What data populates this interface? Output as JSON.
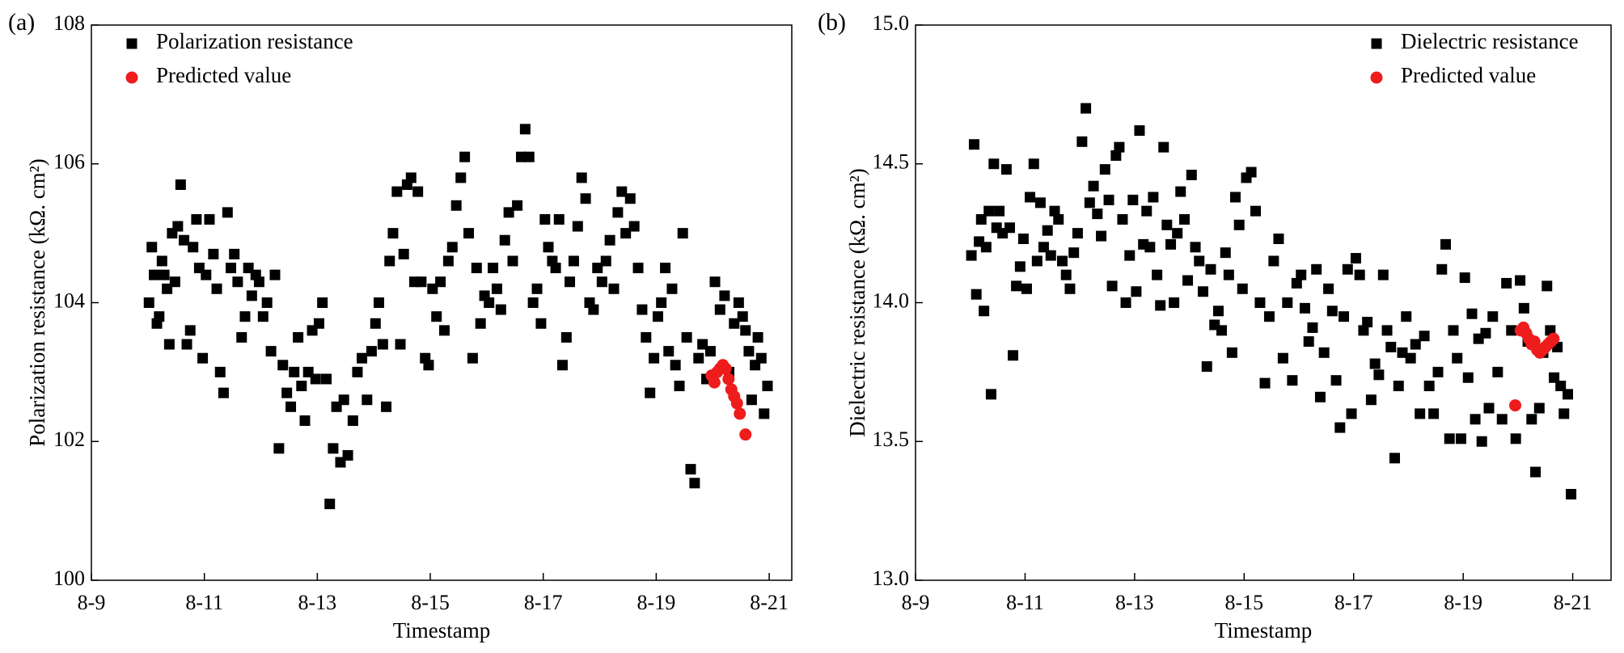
{
  "chart_data": [
    {
      "type": "scatter",
      "panel_label": "(a)",
      "xlabel": "Timestamp",
      "ylabel": "Polarization resistance (kΩ. cm²)",
      "xlim": [
        9,
        21.4
      ],
      "ylim": [
        100,
        108
      ],
      "xticks": [
        {
          "value": 9,
          "label": "8-9"
        },
        {
          "value": 11,
          "label": "8-11"
        },
        {
          "value": 13,
          "label": "8-13"
        },
        {
          "value": 15,
          "label": "8-15"
        },
        {
          "value": 17,
          "label": "8-17"
        },
        {
          "value": 19,
          "label": "8-19"
        },
        {
          "value": 21,
          "label": "8-21"
        }
      ],
      "yticks": [
        100,
        102,
        104,
        106,
        108
      ],
      "legend": "upper left",
      "series": [
        {
          "name": "Polarization resistance",
          "color": "#000000",
          "marker": "square",
          "x": [
            10.02,
            10.07,
            10.11,
            10.16,
            10.2,
            10.25,
            10.29,
            10.34,
            10.38,
            10.43,
            10.48,
            10.53,
            10.58,
            10.64,
            10.69,
            10.75,
            10.8,
            10.86,
            10.91,
            10.97,
            11.03,
            11.09,
            11.16,
            11.22,
            11.28,
            11.34,
            11.41,
            11.47,
            11.53,
            11.59,
            11.66,
            11.72,
            11.78,
            11.84,
            11.91,
            11.97,
            12.04,
            12.11,
            12.18,
            12.25,
            12.32,
            12.39,
            12.46,
            12.53,
            12.59,
            12.66,
            12.72,
            12.78,
            12.84,
            12.91,
            12.97,
            13.03,
            13.09,
            13.16,
            13.22,
            13.28,
            13.34,
            13.41,
            13.47,
            13.54,
            13.63,
            13.71,
            13.79,
            13.88,
            13.96,
            14.03,
            14.09,
            14.16,
            14.22,
            14.28,
            14.34,
            14.41,
            14.47,
            14.53,
            14.59,
            14.66,
            14.72,
            14.78,
            14.84,
            14.91,
            14.97,
            15.04,
            15.11,
            15.18,
            15.25,
            15.32,
            15.39,
            15.46,
            15.54,
            15.61,
            15.68,
            15.75,
            15.82,
            15.89,
            15.96,
            16.04,
            16.11,
            16.18,
            16.25,
            16.32,
            16.39,
            16.46,
            16.54,
            16.61,
            16.68,
            16.75,
            16.82,
            16.89,
            16.96,
            17.03,
            17.09,
            17.16,
            17.22,
            17.28,
            17.34,
            17.41,
            17.47,
            17.54,
            17.61,
            17.68,
            17.75,
            17.82,
            17.89,
            17.96,
            18.04,
            18.11,
            18.18,
            18.25,
            18.32,
            18.39,
            18.46,
            18.54,
            18.61,
            18.68,
            18.75,
            18.82,
            18.89,
            18.96,
            19.03,
            19.09,
            19.16,
            19.22,
            19.28,
            19.34,
            19.41,
            19.47,
            19.54,
            19.61,
            19.68,
            19.75,
            19.82,
            19.89,
            19.96,
            20.04,
            20.13,
            20.21,
            20.29,
            20.38,
            20.46,
            20.53,
            20.58,
            20.64,
            20.69,
            20.75,
            20.8,
            20.86,
            20.91,
            20.97
          ],
          "values": [
            104.0,
            104.8,
            104.4,
            103.7,
            103.8,
            104.6,
            104.4,
            104.2,
            103.4,
            105.0,
            104.3,
            105.1,
            105.7,
            104.9,
            103.4,
            103.6,
            104.8,
            105.2,
            104.5,
            103.2,
            104.4,
            105.2,
            104.7,
            104.2,
            103.0,
            102.7,
            105.3,
            104.5,
            104.7,
            104.3,
            103.5,
            103.8,
            104.5,
            104.1,
            104.4,
            104.3,
            103.8,
            104.0,
            103.3,
            104.4,
            101.9,
            103.1,
            102.7,
            102.5,
            103.0,
            103.5,
            102.8,
            102.3,
            103.0,
            103.6,
            102.9,
            103.7,
            104.0,
            102.9,
            101.1,
            101.9,
            102.5,
            101.7,
            102.6,
            101.8,
            102.3,
            103.0,
            103.2,
            102.6,
            103.3,
            103.7,
            104.0,
            103.4,
            102.5,
            104.6,
            105.0,
            105.6,
            103.4,
            104.7,
            105.7,
            105.8,
            104.3,
            105.6,
            104.3,
            103.2,
            103.1,
            104.2,
            103.8,
            104.3,
            103.6,
            104.6,
            104.8,
            105.4,
            105.8,
            106.1,
            105.0,
            103.2,
            104.5,
            103.7,
            104.1,
            104.0,
            104.5,
            104.2,
            103.9,
            104.9,
            105.3,
            104.6,
            105.4,
            106.1,
            106.5,
            106.1,
            104.0,
            104.2,
            103.7,
            105.2,
            104.8,
            104.6,
            104.5,
            105.2,
            103.1,
            103.5,
            104.3,
            104.6,
            105.1,
            105.8,
            105.5,
            104.0,
            103.9,
            104.5,
            104.3,
            104.6,
            104.9,
            104.2,
            105.3,
            105.6,
            105.0,
            105.5,
            105.1,
            104.5,
            103.9,
            103.5,
            102.7,
            103.2,
            103.8,
            104.0,
            104.5,
            103.3,
            104.2,
            103.1,
            102.8,
            105.0,
            103.5,
            101.6,
            101.4,
            103.2,
            103.4,
            102.9,
            103.3,
            104.3,
            103.9,
            104.1,
            103.0,
            103.7,
            104.0,
            103.8,
            103.6,
            103.3,
            102.6,
            103.1,
            103.5,
            103.2,
            102.4,
            102.8
          ]
        },
        {
          "name": "Predicted value",
          "color": "#ee1c1c",
          "marker": "circle",
          "x": [
            19.98,
            20.03,
            20.08,
            20.13,
            20.18,
            20.23,
            20.28,
            20.33,
            20.38,
            20.43,
            20.48,
            20.58
          ],
          "values": [
            102.95,
            102.85,
            103.0,
            103.05,
            103.1,
            103.05,
            102.9,
            102.75,
            102.65,
            102.55,
            102.4,
            102.1
          ]
        }
      ]
    },
    {
      "type": "scatter",
      "panel_label": "(b)",
      "xlabel": "Timestamp",
      "ylabel": "Dielectric resistance (kΩ. cm²)",
      "xlim": [
        9,
        21.7
      ],
      "ylim": [
        13,
        15
      ],
      "xticks": [
        {
          "value": 9,
          "label": "8-9"
        },
        {
          "value": 11,
          "label": "8-11"
        },
        {
          "value": 13,
          "label": "8-13"
        },
        {
          "value": 15,
          "label": "8-15"
        },
        {
          "value": 17,
          "label": "8-17"
        },
        {
          "value": 19,
          "label": "8-19"
        },
        {
          "value": 21,
          "label": "8-21"
        }
      ],
      "yticks": [
        {
          "value": 13,
          "label": "13.0"
        },
        13.5,
        {
          "value": 14,
          "label": "14.0"
        },
        14.5,
        {
          "value": 15,
          "label": "15.0"
        }
      ],
      "legend": "upper right",
      "series": [
        {
          "name": "Dielectric resistance",
          "color": "#000000",
          "marker": "square",
          "x": [
            10.02,
            10.07,
            10.11,
            10.16,
            10.2,
            10.25,
            10.29,
            10.34,
            10.38,
            10.43,
            10.48,
            10.53,
            10.59,
            10.66,
            10.72,
            10.78,
            10.84,
            10.91,
            10.97,
            11.03,
            11.09,
            11.16,
            11.22,
            11.28,
            11.34,
            11.41,
            11.47,
            11.54,
            11.61,
            11.68,
            11.75,
            11.82,
            11.89,
            11.96,
            12.04,
            12.11,
            12.18,
            12.25,
            12.32,
            12.39,
            12.46,
            12.53,
            12.59,
            12.66,
            12.72,
            12.78,
            12.84,
            12.91,
            12.97,
            13.03,
            13.09,
            13.16,
            13.22,
            13.28,
            13.34,
            13.41,
            13.47,
            13.53,
            13.59,
            13.66,
            13.72,
            13.78,
            13.84,
            13.91,
            13.97,
            14.04,
            14.11,
            14.18,
            14.25,
            14.32,
            14.39,
            14.46,
            14.53,
            14.59,
            14.66,
            14.72,
            14.78,
            14.84,
            14.91,
            14.97,
            15.04,
            15.13,
            15.21,
            15.29,
            15.38,
            15.46,
            15.54,
            15.63,
            15.71,
            15.79,
            15.88,
            15.96,
            16.04,
            16.11,
            16.18,
            16.25,
            16.32,
            16.39,
            16.46,
            16.54,
            16.61,
            16.68,
            16.75,
            16.82,
            16.89,
            16.96,
            17.04,
            17.11,
            17.18,
            17.25,
            17.32,
            17.39,
            17.46,
            17.54,
            17.61,
            17.68,
            17.75,
            17.82,
            17.89,
            17.96,
            18.04,
            18.13,
            18.21,
            18.29,
            18.38,
            18.46,
            18.54,
            18.61,
            18.68,
            18.75,
            18.82,
            18.89,
            18.96,
            19.03,
            19.09,
            19.16,
            19.22,
            19.28,
            19.34,
            19.41,
            19.47,
            19.54,
            19.63,
            19.71,
            19.79,
            19.88,
            19.96,
            20.04,
            20.11,
            20.18,
            20.25,
            20.32,
            20.39,
            20.46,
            20.53,
            20.59,
            20.66,
            20.72,
            20.78,
            20.84,
            20.91,
            20.97
          ],
          "values": [
            14.17,
            14.57,
            14.03,
            14.22,
            14.3,
            13.97,
            14.2,
            14.33,
            13.67,
            14.5,
            14.27,
            14.33,
            14.25,
            14.48,
            14.27,
            13.81,
            14.06,
            14.13,
            14.23,
            14.05,
            14.38,
            14.5,
            14.15,
            14.36,
            14.2,
            14.26,
            14.17,
            14.33,
            14.3,
            14.15,
            14.1,
            14.05,
            14.18,
            14.25,
            14.58,
            14.7,
            14.36,
            14.42,
            14.32,
            14.24,
            14.48,
            14.37,
            14.06,
            14.53,
            14.56,
            14.3,
            14.0,
            14.17,
            14.37,
            14.04,
            14.62,
            14.21,
            14.33,
            14.2,
            14.38,
            14.1,
            13.99,
            14.56,
            14.28,
            14.21,
            14.0,
            14.25,
            14.4,
            14.3,
            14.08,
            14.46,
            14.2,
            14.15,
            14.04,
            13.77,
            14.12,
            13.92,
            13.97,
            13.9,
            14.18,
            14.1,
            13.82,
            14.38,
            14.28,
            14.05,
            14.45,
            14.47,
            14.33,
            14.0,
            13.71,
            13.95,
            14.15,
            14.23,
            13.8,
            14.0,
            13.72,
            14.07,
            14.1,
            13.98,
            13.86,
            13.91,
            14.12,
            13.66,
            13.82,
            14.05,
            13.97,
            13.72,
            13.55,
            13.95,
            14.12,
            13.6,
            14.16,
            14.1,
            13.9,
            13.93,
            13.65,
            13.78,
            13.74,
            14.1,
            13.9,
            13.84,
            13.44,
            13.7,
            13.82,
            13.95,
            13.8,
            13.85,
            13.6,
            13.88,
            13.7,
            13.6,
            13.75,
            14.12,
            14.21,
            13.51,
            13.9,
            13.8,
            13.51,
            14.09,
            13.73,
            13.96,
            13.58,
            13.87,
            13.5,
            13.89,
            13.62,
            13.95,
            13.75,
            13.58,
            14.07,
            13.9,
            13.51,
            14.08,
            13.98,
            13.86,
            13.58,
            13.39,
            13.62,
            13.82,
            14.06,
            13.9,
            13.73,
            13.84,
            13.7,
            13.6,
            13.67,
            13.31
          ]
        },
        {
          "name": "Predicted value",
          "color": "#ee1c1c",
          "marker": "circle",
          "x": [
            19.95,
            20.05,
            20.1,
            20.15,
            20.2,
            20.25,
            20.3,
            20.35,
            20.4,
            20.45,
            20.5,
            20.55,
            20.6,
            20.65
          ],
          "values": [
            13.63,
            13.9,
            13.91,
            13.89,
            13.87,
            13.85,
            13.86,
            13.83,
            13.82,
            13.83,
            13.84,
            13.85,
            13.86,
            13.87
          ]
        }
      ]
    }
  ]
}
